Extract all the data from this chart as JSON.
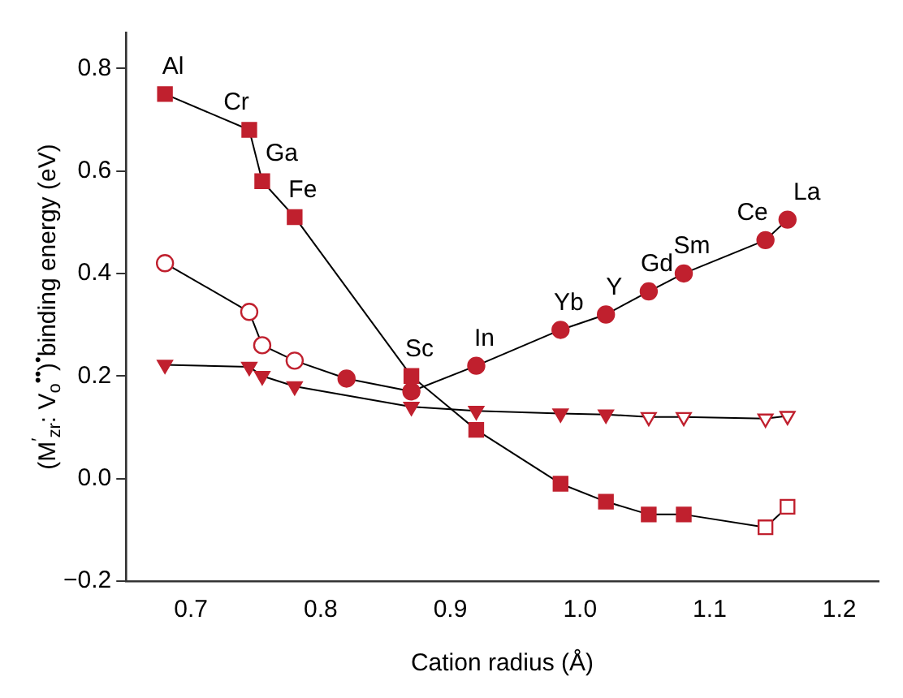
{
  "chart_data": {
    "type": "line",
    "xlabel": "Cation radius (Å)",
    "ylabel": "(M$^{′}$$_{zr}$: V$_{o}$$^{••}$)$^{•}$binding energy (eV)",
    "xlim": [
      0.65,
      1.23
    ],
    "ylim": [
      -0.2,
      0.87
    ],
    "xticks": [
      0.7,
      0.8,
      0.9,
      {
        "value": 1,
        "label": "1.0"
      },
      1.1,
      1.2
    ],
    "yticks": [
      {
        "value": -0.2,
        "label": "−0.2"
      },
      {
        "value": 0,
        "label": "0.0"
      },
      {
        "value": 0.2,
        "label": "0.2"
      },
      {
        "value": 0.4,
        "label": "0.4"
      },
      {
        "value": 0.6,
        "label": "0.6"
      },
      {
        "value": 0.8,
        "label": "0.8"
      }
    ],
    "grid": false,
    "legend": false,
    "series": [
      {
        "color": "#c0202e",
        "marker": "square",
        "x": [
          0.68,
          0.745,
          0.755,
          0.78,
          0.87,
          0.92,
          0.985,
          1.02,
          1.053,
          1.08,
          1.143,
          1.16
        ],
        "values": [
          0.75,
          0.68,
          0.58,
          0.51,
          0.2,
          0.095,
          -0.01,
          -0.045,
          -0.07,
          -0.07,
          -0.095,
          -0.055
        ],
        "colors": [
          "#c0202e",
          "#c0202e",
          "#c0202e",
          "#c0202e",
          "#c0202e",
          "#c0202e",
          "#c0202e",
          "#c0202e",
          "#c0202e",
          "#c0202e",
          "#ffffff",
          "#ffffff"
        ]
      },
      {
        "color": "#c0202e",
        "marker": "circle",
        "x": [
          0.68,
          0.745,
          0.755,
          0.78,
          0.82,
          0.87,
          0.92,
          0.985,
          1.02,
          1.053,
          1.08,
          1.143,
          1.16
        ],
        "values": [
          0.42,
          0.325,
          0.26,
          0.23,
          0.195,
          0.17,
          0.22,
          0.29,
          0.32,
          0.365,
          0.4,
          0.465,
          0.505
        ],
        "colors": [
          "#ffffff",
          "#ffffff",
          "#ffffff",
          "#ffffff",
          "#c0202e",
          "#c0202e",
          "#c0202e",
          "#c0202e",
          "#c0202e",
          "#c0202e",
          "#c0202e",
          "#c0202e",
          "#c0202e"
        ]
      },
      {
        "color": "#c0202e",
        "marker": "triangle",
        "x": [
          0.68,
          0.745,
          0.755,
          0.78,
          0.87,
          0.92,
          0.985,
          1.02,
          1.053,
          1.08,
          1.143,
          1.16
        ],
        "values": [
          0.222,
          0.218,
          0.2,
          0.18,
          0.14,
          0.132,
          0.127,
          0.125,
          0.12,
          0.12,
          0.117,
          0.122
        ],
        "colors": [
          "#c0202e",
          "#c0202e",
          "#c0202e",
          "#c0202e",
          "#c0202e",
          "#c0202e",
          "#c0202e",
          "#c0202e",
          "#ffffff",
          "#ffffff",
          "#ffffff",
          "#ffffff"
        ]
      }
    ],
    "annotations": [
      {
        "text": "Al",
        "x": 0.68,
        "y": 0.75
      },
      {
        "text": "Cr",
        "x": 0.745,
        "y": 0.68
      },
      {
        "text": "Ga",
        "x": 0.755,
        "y": 0.58
      },
      {
        "text": "Fe",
        "x": 0.78,
        "y": 0.51
      },
      {
        "text": "Sc",
        "x": 0.87,
        "y": 0.2
      },
      {
        "text": "In",
        "x": 0.92,
        "y": 0.22
      },
      {
        "text": "Yb",
        "x": 0.985,
        "y": 0.29
      },
      {
        "text": "Y",
        "x": 1.02,
        "y": 0.32
      },
      {
        "text": "Gd",
        "x": 1.053,
        "y": 0.365
      },
      {
        "text": "Sm",
        "x": 1.08,
        "y": 0.4
      },
      {
        "text": "Ce",
        "x": 1.143,
        "y": 0.465
      },
      {
        "text": "La",
        "x": 1.16,
        "y": 0.505
      }
    ]
  }
}
